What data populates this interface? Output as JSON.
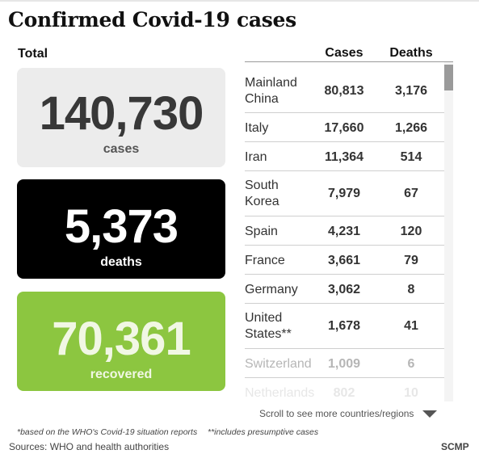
{
  "title": "Confirmed Covid-19 cases",
  "total_label": "Total",
  "stats": {
    "cases": {
      "value": "140,730",
      "label": "cases"
    },
    "deaths": {
      "value": "5,373",
      "label": "deaths"
    },
    "recovered": {
      "value": "70,361",
      "label": "recovered"
    }
  },
  "table": {
    "headers": {
      "cases": "Cases",
      "deaths": "Deaths"
    },
    "rows": [
      {
        "country": "Mainland China",
        "cases": "80,813",
        "deaths": "3,176"
      },
      {
        "country": "Italy",
        "cases": "17,660",
        "deaths": "1,266"
      },
      {
        "country": "Iran",
        "cases": "11,364",
        "deaths": "514"
      },
      {
        "country": "South Korea",
        "cases": "7,979",
        "deaths": "67"
      },
      {
        "country": "Spain",
        "cases": "4,231",
        "deaths": "120"
      },
      {
        "country": "France",
        "cases": "3,661",
        "deaths": "79"
      },
      {
        "country": "Germany",
        "cases": "3,062",
        "deaths": "8"
      },
      {
        "country": "United States**",
        "cases": "1,678",
        "deaths": "41"
      },
      {
        "country": "Switzerland",
        "cases": "1,009",
        "deaths": "6"
      },
      {
        "country": "Netherlands",
        "cases": "802",
        "deaths": "10"
      }
    ]
  },
  "scroll_hint": "Scroll to see more countries/regions",
  "footnotes": {
    "who": "*based on the WHO's Covid-19 situation reports",
    "presumptive": "**includes presumptive cases"
  },
  "sources": "Sources: WHO and health authorities",
  "brand": "SCMP",
  "colors": {
    "cases_box": "#ececec",
    "deaths_box": "#000000",
    "recovered_box": "#8cc640"
  }
}
